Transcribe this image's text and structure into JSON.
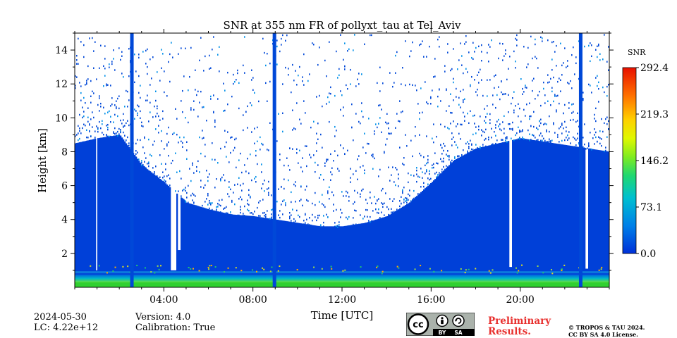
{
  "chart_data": {
    "type": "heatmap",
    "title": "SNR at 355 nm FR of pollyxt_tau at Tel_Aviv",
    "xlabel": "Time [UTC]",
    "ylabel": "Height [km]",
    "xlim_hours": [
      0,
      24
    ],
    "ylim_km": [
      0,
      15
    ],
    "x_ticks": [
      {
        "value": 4,
        "label": "04:00"
      },
      {
        "value": 8,
        "label": "08:00"
      },
      {
        "value": 12,
        "label": "12:00"
      },
      {
        "value": 16,
        "label": "16:00"
      },
      {
        "value": 20,
        "label": "20:00"
      }
    ],
    "y_ticks": [
      {
        "value": 2,
        "label": "2"
      },
      {
        "value": 4,
        "label": "4"
      },
      {
        "value": 6,
        "label": "6"
      },
      {
        "value": 8,
        "label": "8"
      },
      {
        "value": 10,
        "label": "10"
      },
      {
        "value": 12,
        "label": "12"
      },
      {
        "value": 14,
        "label": "14"
      }
    ],
    "colorbar": {
      "label": "SNR",
      "range": [
        0.0,
        292.4
      ],
      "ticks": [
        "292.4",
        "219.3",
        "146.2",
        "73.1",
        "0.0"
      ],
      "colors": [
        "#0000cc",
        "#0050e0",
        "#00a0e8",
        "#00d0a0",
        "#40e040",
        "#c0f020",
        "#ffff00",
        "#ffb000",
        "#ff5000",
        "#e80000"
      ]
    },
    "signal_top_km_by_hour": [
      {
        "hour": 0,
        "top": 8.5
      },
      {
        "hour": 1,
        "top": 8.8
      },
      {
        "hour": 2,
        "top": 9.0
      },
      {
        "hour": 3,
        "top": 7.2
      },
      {
        "hour": 4,
        "top": 6.2
      },
      {
        "hour": 5,
        "top": 5.0
      },
      {
        "hour": 6,
        "top": 4.6
      },
      {
        "hour": 7,
        "top": 4.3
      },
      {
        "hour": 8,
        "top": 4.2
      },
      {
        "hour": 9,
        "top": 4.0
      },
      {
        "hour": 10,
        "top": 3.8
      },
      {
        "hour": 11,
        "top": 3.6
      },
      {
        "hour": 12,
        "top": 3.6
      },
      {
        "hour": 13,
        "top": 3.8
      },
      {
        "hour": 14,
        "top": 4.2
      },
      {
        "hour": 15,
        "top": 5.0
      },
      {
        "hour": 16,
        "top": 6.2
      },
      {
        "hour": 17,
        "top": 7.5
      },
      {
        "hour": 18,
        "top": 8.2
      },
      {
        "hour": 19,
        "top": 8.5
      },
      {
        "hour": 20,
        "top": 8.8
      },
      {
        "hour": 21,
        "top": 8.6
      },
      {
        "hour": 22,
        "top": 8.4
      },
      {
        "hour": 23,
        "top": 8.2
      },
      {
        "hour": 24,
        "top": 8.0
      }
    ],
    "full_column_hours": [
      2.55,
      8.95,
      22.7
    ],
    "gap_hours": [
      {
        "start": 0.9,
        "end": 1.0,
        "down_to_km": 1.0
      },
      {
        "start": 4.3,
        "end": 4.5,
        "down_to_km": 1.0
      },
      {
        "start": 4.6,
        "end": 4.7,
        "down_to_km": 2.2
      },
      {
        "start": 19.5,
        "end": 19.6,
        "down_to_km": 1.2
      },
      {
        "start": 22.9,
        "end": 23.0,
        "down_to_km": 1.1
      }
    ]
  },
  "footer": {
    "date": "2024-05-30",
    "lc": "LC: 4.22e+12",
    "version": "Version: 4.0",
    "calibration": "Calibration: True",
    "preliminary_line1": "Preliminary",
    "preliminary_line2": "Results.",
    "copyright_line1": "© TROPOS & TAU 2024.",
    "copyright_line2": "CC BY SA 4.0 License.",
    "cc_badge_text": {
      "by": "BY",
      "sa": "SA",
      "cc": "cc"
    }
  }
}
